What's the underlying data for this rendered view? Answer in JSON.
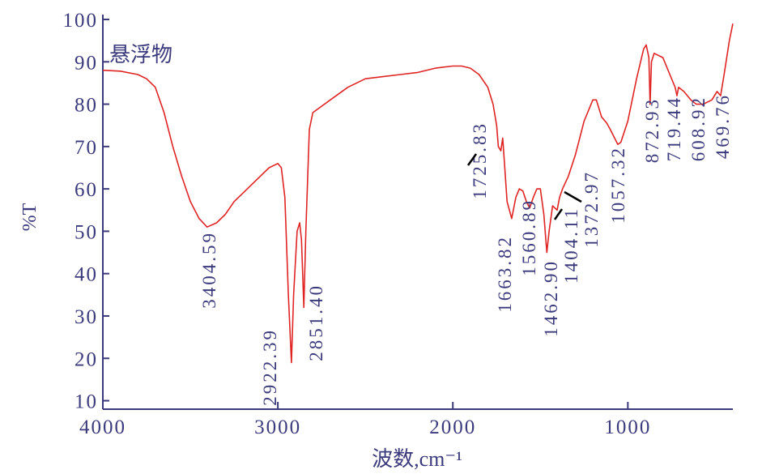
{
  "chart_data": {
    "type": "line",
    "xlabel": "波数,cm⁻¹",
    "ylabel": "%T",
    "xlim": [
      4000,
      400
    ],
    "ylim": [
      8,
      100
    ],
    "xticks": [
      4000,
      3000,
      2000,
      1000
    ],
    "yticks": [
      10,
      20,
      30,
      40,
      50,
      60,
      70,
      80,
      90,
      100
    ],
    "x": [
      4000,
      3900,
      3800,
      3750,
      3700,
      3650,
      3600,
      3550,
      3500,
      3450,
      3404.59,
      3350,
      3300,
      3250,
      3200,
      3150,
      3100,
      3050,
      3000,
      2980,
      2960,
      2940,
      2922.39,
      2910,
      2890,
      2875,
      2865,
      2851.4,
      2840,
      2820,
      2800,
      2700,
      2600,
      2500,
      2400,
      2300,
      2200,
      2100,
      2000,
      1950,
      1900,
      1850,
      1800,
      1770,
      1750,
      1740,
      1725.83,
      1715,
      1705,
      1690,
      1663.82,
      1640,
      1620,
      1600,
      1580,
      1560.89,
      1540,
      1520,
      1500,
      1480,
      1462.9,
      1450,
      1430,
      1404.11,
      1390,
      1372.97,
      1340,
      1300,
      1250,
      1200,
      1180,
      1150,
      1120,
      1100,
      1057.32,
      1040,
      1000,
      950,
      910,
      895,
      880,
      872.93,
      865,
      850,
      800,
      760,
      730,
      719.44,
      710,
      680,
      640,
      608.92,
      570,
      520,
      490,
      469.76,
      450,
      420,
      400
    ],
    "series": [
      {
        "name": "悬浮物",
        "color": "#e02424",
        "values": [
          88,
          87.8,
          87,
          86,
          84,
          78,
          70,
          63,
          57,
          53,
          51,
          52,
          54,
          57,
          59,
          61,
          63,
          65,
          66,
          65,
          58,
          35,
          19,
          35,
          50,
          52,
          48,
          32,
          50,
          74,
          78,
          81,
          84,
          86,
          86.5,
          87,
          87.5,
          88.5,
          89,
          89,
          88.5,
          87,
          84,
          80,
          75,
          70,
          69,
          72,
          66,
          57,
          53,
          58,
          60,
          59.5,
          57,
          55.5,
          58,
          60,
          60,
          54,
          45,
          50,
          56,
          55,
          58,
          60,
          63,
          68,
          76,
          81,
          81,
          77,
          75.5,
          74,
          70.5,
          71,
          76,
          86,
          93,
          94,
          91,
          80,
          90,
          92,
          91,
          87,
          84,
          82,
          84,
          83,
          81,
          80,
          80,
          81,
          83,
          82,
          87,
          95,
          99
        ]
      }
    ],
    "annotations": [
      "3404.59",
      "2922.39",
      "2851.40",
      "1725.83",
      "1663.82",
      "1560.89",
      "1462.90",
      "1404.11",
      "1372.97",
      "1057.32",
      "872.93",
      "719.44",
      "608.92",
      "469.76"
    ]
  }
}
